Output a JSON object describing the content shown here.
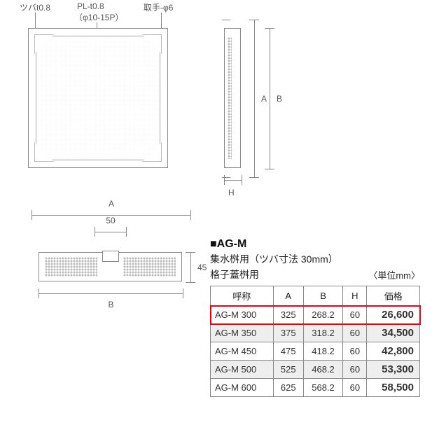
{
  "labels": {
    "tsuba": "ツバt0.8",
    "plate": "PL-t0.8",
    "plate_sub": "（φ10-15P）",
    "handle": "取手-φ6",
    "dim_A": "A",
    "dim_B": "B",
    "dim_H": "H",
    "dim_50": "50",
    "dim_45": "45"
  },
  "product": {
    "title": "■AG-M",
    "subtitle1": "集水桝用（ツバ寸法 30mm）",
    "subtitle2": "格子蓋桝用",
    "unit": "〈単位mm〉"
  },
  "table": {
    "columns": [
      "呼称",
      "A",
      "B",
      "H",
      "価格"
    ],
    "rows": [
      {
        "name": "AG-M 300",
        "A": "325",
        "B": "268.2",
        "H": "60",
        "price": "26,600",
        "highlight": true,
        "alt": false
      },
      {
        "name": "AG-M 350",
        "A": "375",
        "B": "318.2",
        "H": "60",
        "price": "34,500",
        "highlight": false,
        "alt": true
      },
      {
        "name": "AG-M 450",
        "A": "475",
        "B": "418.2",
        "H": "60",
        "price": "42,800",
        "highlight": false,
        "alt": false
      },
      {
        "name": "AG-M 500",
        "A": "525",
        "B": "468.2",
        "H": "60",
        "price": "53,300",
        "highlight": false,
        "alt": true
      },
      {
        "name": "AG-M 600",
        "A": "625",
        "B": "568.2",
        "H": "60",
        "price": "58,500",
        "highlight": false,
        "alt": false
      }
    ]
  },
  "colors": {
    "highlight_border": "#e30613",
    "line": "#888888",
    "text": "#333333",
    "alt_row_bg": "#eeeeee"
  }
}
